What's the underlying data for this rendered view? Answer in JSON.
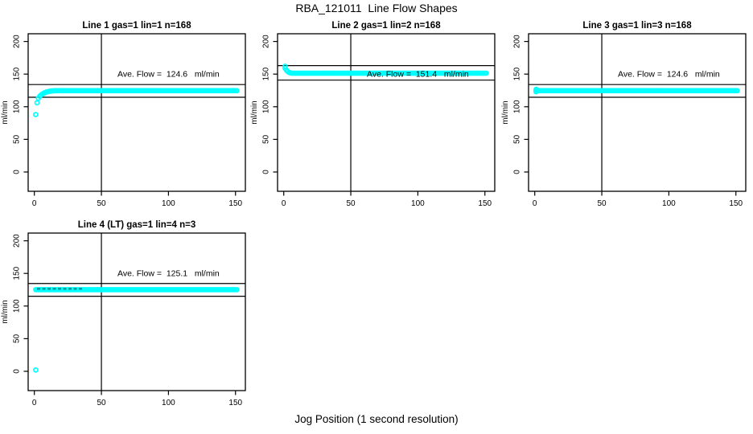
{
  "figure": {
    "title": "RBA_121011  Line Flow Shapes",
    "xlabel": "Jog Position (1 second resolution)"
  },
  "chart_data": {
    "type": "scatter",
    "background": "#FFFFFF",
    "point_color": "#00FFFF",
    "dark_mark_color": "#009696",
    "axis_color": "#000000",
    "grid": false,
    "x_ticks": [
      0,
      50,
      100,
      150
    ],
    "y_ticks": [
      0,
      50,
      100,
      150,
      200
    ],
    "xlim": [
      -5,
      157
    ],
    "ylim": [
      -30,
      212
    ],
    "vline_x": 50,
    "xlabel": "Jog Position (1 second resolution)",
    "ylabel": "ml/min",
    "plots": [
      {
        "title": "Line 1 gas=1 lin=1 n=168",
        "ylabel": "ml/min",
        "annotation": "Ave. Flow =  124.6   ml/min",
        "ave_flow": 124.6,
        "n": 168,
        "hlines": [
          134,
          114.5
        ],
        "points": [
          [
            1,
            88
          ],
          [
            2,
            106
          ],
          [
            3,
            113
          ],
          [
            4,
            116
          ],
          [
            5,
            118
          ],
          [
            6,
            119.5
          ],
          [
            7,
            120.7
          ],
          [
            8,
            121.7
          ],
          [
            9,
            122.5
          ],
          [
            10,
            123.1
          ],
          [
            11,
            123.5
          ],
          [
            12,
            123.9
          ],
          [
            13,
            124.1
          ],
          [
            14,
            124.3
          ]
        ],
        "flat": {
          "from": 15,
          "to": 151,
          "value": 124.6
        },
        "annotation_pos": [
          100,
          146
        ]
      },
      {
        "title": "Line 2 gas=1 lin=2 n=168",
        "ylabel": "ml/min",
        "annotation": "Ave. Flow =  151.4   ml/min",
        "ave_flow": 151.4,
        "n": 168,
        "hlines": [
          163,
          140.8
        ],
        "points": [
          [
            1,
            162
          ],
          [
            1,
            159
          ],
          [
            2,
            156
          ],
          [
            3,
            154
          ],
          [
            4,
            152.5
          ],
          [
            5,
            151.8
          ]
        ],
        "flat": {
          "from": 6,
          "to": 151,
          "value": 151.4
        },
        "annotation_pos": [
          100,
          146
        ]
      },
      {
        "title": "Line 3 gas=1 lin=3 n=168",
        "ylabel": "ml/min",
        "annotation": "Ave. Flow =  124.6   ml/min",
        "ave_flow": 124.6,
        "n": 168,
        "hlines": [
          134,
          114.5
        ],
        "points": [
          [
            1,
            123
          ],
          [
            1,
            126.5
          ],
          [
            2,
            125.5
          ]
        ],
        "flat": {
          "from": 1,
          "to": 151,
          "value": 124.6
        },
        "annotation_pos": [
          100,
          146
        ]
      },
      {
        "title": "Line 4 (LT) gas=1 lin=4 n=3",
        "ylabel": "ml/min",
        "annotation": "Ave. Flow =  125.1   ml/min",
        "ave_flow": 125.1,
        "n": 3,
        "hlines": [
          134.5,
          115
        ],
        "points": [
          [
            1,
            2
          ]
        ],
        "flat": {
          "from": 1,
          "to": 151,
          "value": 125.1
        },
        "dark_marks": {
          "x1": 2,
          "x2": 36,
          "y": 126.5
        },
        "annotation_pos": [
          100,
          146
        ]
      }
    ]
  }
}
